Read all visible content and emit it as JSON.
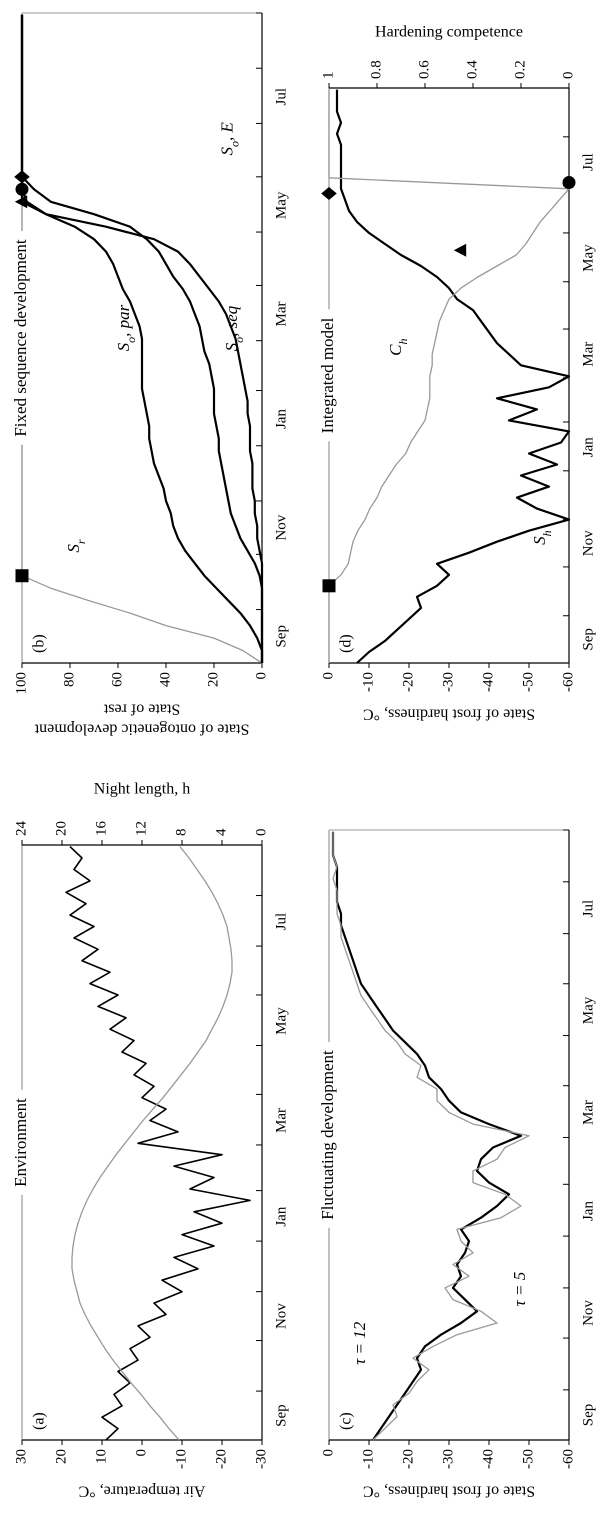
{
  "chart_data": [
    {
      "type": "line",
      "label": "(a)",
      "title": "Environment",
      "x": [
        0,
        7,
        14,
        21,
        28,
        35,
        42,
        49,
        56,
        63,
        70,
        77,
        84,
        91,
        98,
        105,
        112,
        119,
        126,
        133,
        140,
        147,
        154,
        161,
        168,
        175,
        182,
        189,
        196,
        203,
        210,
        217,
        224,
        231,
        238,
        245,
        252,
        259,
        266,
        273,
        280,
        287,
        294,
        301,
        308,
        315,
        322,
        329,
        336,
        343,
        350,
        357,
        364
      ],
      "xlim": [
        0,
        365
      ],
      "xticks": [
        0,
        30,
        61,
        91,
        122,
        153,
        181,
        212,
        242,
        273,
        303,
        334,
        365
      ],
      "xlabels": [
        {
          "value": 15,
          "label": "Sep"
        },
        {
          "value": 76,
          "label": "Nov"
        },
        {
          "value": 137,
          "label": "Jan"
        },
        {
          "value": 196,
          "label": "Mar"
        },
        {
          "value": 257,
          "label": "May"
        },
        {
          "value": 318,
          "label": "Jul"
        }
      ],
      "ylim": [
        -30,
        30
      ],
      "yticks": [
        30,
        20,
        10,
        0,
        -10,
        -20,
        -30
      ],
      "ylabel": [
        "Air temperature, °C"
      ],
      "y2lim": [
        0,
        24
      ],
      "y2ticks": [
        24,
        20,
        16,
        12,
        8,
        4,
        0
      ],
      "y2label": "Night length, h",
      "series": [
        {
          "color": "#000000",
          "width": 1.6,
          "values": [
            9,
            6,
            10,
            5,
            7,
            3,
            6,
            1,
            3,
            -2,
            1,
            -6,
            -3,
            -10,
            -5,
            -14,
            -8,
            -18,
            -10,
            -20,
            -13,
            -27,
            -12,
            -18,
            -8,
            -20,
            1,
            -9,
            -2,
            -6,
            0,
            -3,
            2,
            -1,
            5,
            2,
            8,
            4,
            11,
            6,
            13,
            8,
            15,
            11,
            17,
            12,
            18,
            14,
            19,
            13,
            17,
            15,
            18
          ]
        },
        {
          "color": "#999999",
          "width": 1.3,
          "axis": "y2",
          "values": [
            8.3,
            9.3,
            10.2,
            11.2,
            12.1,
            13.1,
            14.0,
            14.9,
            15.7,
            16.4,
            17.1,
            17.7,
            18.2,
            18.5,
            18.8,
            19.0,
            19.0,
            18.9,
            18.7,
            18.4,
            18.0,
            17.5,
            16.9,
            16.2,
            15.4,
            14.6,
            13.7,
            12.8,
            11.9,
            10.9,
            9.9,
            9.0,
            8.1,
            7.2,
            6.4,
            5.6,
            5.0,
            4.4,
            3.9,
            3.5,
            3.2,
            3.0,
            3.0,
            3.1,
            3.3,
            3.5,
            3.9,
            4.4,
            5.0,
            5.7,
            6.5,
            7.3,
            8.2
          ]
        }
      ],
      "markers": []
    },
    {
      "type": "line",
      "label": "(b)",
      "title": "Fixed sequence development",
      "x": [
        0,
        7,
        14,
        21,
        28,
        35,
        42,
        49,
        56,
        63,
        70,
        77,
        84,
        91,
        98,
        105,
        112,
        119,
        126,
        133,
        140,
        147,
        154,
        161,
        168,
        175,
        182,
        189,
        196,
        203,
        210,
        217,
        224,
        231,
        238,
        245,
        252,
        259,
        266,
        273,
        280,
        287,
        294,
        301,
        308,
        315,
        322,
        329,
        336,
        343,
        350,
        357,
        364
      ],
      "xlim": [
        0,
        365
      ],
      "xticks": [
        0,
        30,
        61,
        91,
        122,
        153,
        181,
        212,
        242,
        273,
        303,
        334,
        365
      ],
      "xlabels": [
        {
          "value": 15,
          "label": "Sep"
        },
        {
          "value": 76,
          "label": "Nov"
        },
        {
          "value": 137,
          "label": "Jan"
        },
        {
          "value": 196,
          "label": "Mar"
        },
        {
          "value": 257,
          "label": "May"
        },
        {
          "value": 318,
          "label": "Jul"
        }
      ],
      "ylim": [
        0,
        100
      ],
      "yticks": [
        100,
        80,
        60,
        40,
        20,
        0
      ],
      "ylabel": [
        "State of ontogenetic development",
        "State of rest"
      ],
      "series": [
        {
          "name": "S",
          "name_sub": "r",
          "color": "#999999",
          "width": 1.3,
          "values": [
            0,
            8,
            20,
            40,
            55,
            72,
            88,
            100,
            100,
            100,
            100,
            100,
            100,
            100,
            100,
            100,
            100,
            100,
            100,
            100,
            100,
            100,
            100,
            100,
            100,
            100,
            100,
            100,
            100,
            100,
            100,
            100,
            100,
            100,
            100,
            100,
            100,
            100,
            100,
            100,
            100,
            100,
            100,
            100,
            100,
            100,
            100,
            100,
            100,
            100,
            100,
            100,
            100
          ]
        },
        {
          "name": "S",
          "name_sub": "o",
          "name_suffix": ", par",
          "color": "#000000",
          "width": 2.2,
          "values": [
            0,
            0,
            2,
            5,
            9,
            14,
            19,
            24,
            28,
            32,
            35,
            37,
            38,
            40,
            41,
            43,
            45,
            46,
            47,
            47,
            48,
            49,
            50,
            50,
            50,
            50,
            50,
            51,
            53,
            55,
            58,
            60,
            62,
            65,
            70,
            78,
            90,
            98,
            100,
            100,
            100,
            100,
            100,
            100,
            100,
            100,
            100,
            100,
            100,
            100,
            100,
            100,
            100
          ]
        },
        {
          "name": "S",
          "name_sub": "o",
          "name_suffix": ", seq",
          "color": "#000000",
          "width": 2.2,
          "values": [
            0,
            0,
            0,
            0,
            0,
            0,
            0,
            1,
            3,
            6,
            9,
            11,
            13,
            14,
            15,
            16,
            17,
            18,
            18,
            19,
            20,
            20,
            20,
            21,
            22,
            24,
            25,
            26,
            28,
            30,
            33,
            37,
            40,
            43,
            48,
            55,
            70,
            88,
            95,
            100,
            100,
            100,
            100,
            100,
            100,
            100,
            100,
            100,
            100,
            100,
            100,
            100,
            100
          ]
        },
        {
          "name": "S",
          "name_sub": "o",
          "name_suffix": ", E",
          "color": "#000000",
          "width": 2.2,
          "values": [
            0,
            0,
            0,
            0,
            0,
            0,
            0,
            0,
            0,
            1,
            2,
            2,
            3,
            3,
            4,
            4,
            4,
            5,
            5,
            5,
            6,
            6,
            7,
            8,
            9,
            10,
            11,
            13,
            15,
            18,
            22,
            26,
            30,
            35,
            45,
            65,
            90,
            100,
            100,
            100,
            100,
            100,
            100,
            100,
            100,
            100,
            100,
            100,
            100,
            100,
            100,
            100,
            100
          ]
        }
      ],
      "markers": [
        {
          "shape": "square",
          "x": 49,
          "y": 100
        },
        {
          "shape": "triangle",
          "x": 259,
          "y": 100
        },
        {
          "shape": "circle",
          "x": 266,
          "y": 100
        },
        {
          "shape": "diamond",
          "x": 273,
          "y": 100
        }
      ]
    },
    {
      "type": "line",
      "label": "(c)",
      "title": "Fluctuating development",
      "x": [
        0,
        7,
        14,
        21,
        28,
        35,
        42,
        49,
        56,
        63,
        70,
        77,
        84,
        91,
        98,
        105,
        112,
        119,
        126,
        133,
        140,
        147,
        154,
        161,
        168,
        175,
        182,
        189,
        196,
        203,
        210,
        217,
        224,
        231,
        238,
        245,
        252,
        259,
        266,
        273,
        280,
        287,
        294,
        301,
        308,
        315,
        322,
        329,
        336,
        343,
        350,
        357,
        364
      ],
      "xlim": [
        0,
        365
      ],
      "xticks": [
        0,
        30,
        61,
        91,
        122,
        153,
        181,
        212,
        242,
        273,
        303,
        334,
        365
      ],
      "xlabels": [
        {
          "value": 15,
          "label": "Sep"
        },
        {
          "value": 76,
          "label": "Nov"
        },
        {
          "value": 137,
          "label": "Jan"
        },
        {
          "value": 196,
          "label": "Mar"
        },
        {
          "value": 257,
          "label": "May"
        },
        {
          "value": 318,
          "label": "Jul"
        }
      ],
      "ylim": [
        -60,
        0
      ],
      "yticks": [
        0,
        -10,
        -20,
        -30,
        -40,
        -50,
        -60
      ],
      "ylabel": [
        "State of frost hardiness, °C"
      ],
      "series": [
        {
          "name": "τ = 12",
          "color": "#000000",
          "width": 2.2,
          "values": [
            -11,
            -13,
            -15,
            -17,
            -19,
            -21,
            -23,
            -22,
            -24,
            -28,
            -33,
            -37,
            -34,
            -31,
            -33,
            -32,
            -34,
            -35,
            -33,
            -38,
            -42,
            -45,
            -40,
            -37,
            -38,
            -41,
            -48,
            -40,
            -33,
            -30,
            -28,
            -25,
            -24,
            -22,
            -19,
            -16,
            -14,
            -12,
            -10,
            -8,
            -7,
            -6,
            -5,
            -4,
            -3,
            -3,
            -2,
            -2,
            -2,
            -2,
            -1,
            -1,
            -1
          ]
        },
        {
          "name": "τ = 5",
          "color": "#999999",
          "width": 1.3,
          "values": [
            -11,
            -14,
            -17,
            -16,
            -20,
            -22,
            -25,
            -21,
            -26,
            -32,
            -42,
            -38,
            -31,
            -29,
            -35,
            -31,
            -36,
            -33,
            -32,
            -43,
            -48,
            -44,
            -36,
            -36,
            -42,
            -44,
            -50,
            -36,
            -30,
            -27,
            -27,
            -22,
            -23,
            -19,
            -17,
            -14,
            -12,
            -10,
            -8,
            -7,
            -6,
            -5,
            -4,
            -3,
            -3,
            -2,
            -2,
            -2,
            -1,
            -2,
            -1,
            -1,
            -1
          ]
        }
      ],
      "markers": []
    },
    {
      "type": "line",
      "label": "(d)",
      "title": "Integrated model",
      "x": [
        0,
        7,
        14,
        21,
        28,
        35,
        42,
        49,
        56,
        63,
        70,
        77,
        84,
        91,
        98,
        105,
        112,
        119,
        126,
        133,
        140,
        147,
        154,
        161,
        168,
        175,
        182,
        189,
        196,
        203,
        210,
        217,
        224,
        231,
        238,
        245,
        252,
        259,
        266,
        273,
        280,
        287,
        294,
        301,
        308,
        315,
        322,
        329,
        336,
        343,
        350,
        357,
        364
      ],
      "xlim": [
        0,
        365
      ],
      "xticks": [
        0,
        30,
        61,
        91,
        122,
        153,
        181,
        212,
        242,
        273,
        303,
        334,
        365
      ],
      "xlabels": [
        {
          "value": 15,
          "label": "Sep"
        },
        {
          "value": 76,
          "label": "Nov"
        },
        {
          "value": 137,
          "label": "Jan"
        },
        {
          "value": 196,
          "label": "Mar"
        },
        {
          "value": 257,
          "label": "May"
        },
        {
          "value": 318,
          "label": "Jul"
        }
      ],
      "ylim": [
        -60,
        0
      ],
      "yticks": [
        0,
        -10,
        -20,
        -30,
        -40,
        -50,
        -60
      ],
      "ylabel": [
        "State of frost hardiness, °C"
      ],
      "y2lim": [
        0,
        1
      ],
      "y2ticks": [
        1,
        0.8,
        0.6,
        0.4,
        0.2,
        0
      ],
      "y2label": "Hardening competence",
      "series": [
        {
          "name": "S",
          "name_sub": "h",
          "color": "#000000",
          "width": 2.2,
          "values": [
            -7,
            -10,
            -14,
            -17,
            -20,
            -23,
            -22,
            -27,
            -30,
            -27,
            -35,
            -42,
            -50,
            -60,
            -52,
            -47,
            -55,
            -48,
            -57,
            -50,
            -58,
            -60,
            -45,
            -52,
            -42,
            -55,
            -60,
            -48,
            -45,
            -42,
            -40,
            -38,
            -36,
            -32,
            -30,
            -27,
            -23,
            -18,
            -14,
            -10,
            -7,
            -5,
            -4,
            -3,
            -3,
            -3,
            -3,
            -3,
            -2,
            -3,
            -2,
            -2,
            -2
          ]
        },
        {
          "name": "C",
          "name_sub": "h",
          "color": "#999999",
          "width": 1.3,
          "axis": "y2",
          "values": [
            1,
            1,
            1,
            1,
            1,
            1,
            1,
            1,
            0.95,
            0.92,
            0.91,
            0.9,
            0.88,
            0.85,
            0.83,
            0.8,
            0.78,
            0.75,
            0.72,
            0.68,
            0.66,
            0.63,
            0.6,
            0.59,
            0.58,
            0.58,
            0.58,
            0.57,
            0.57,
            0.56,
            0.55,
            0.54,
            0.52,
            0.5,
            0.45,
            0.38,
            0.3,
            0.22,
            0.18,
            0.15,
            0.12,
            0.08,
            0.04,
            0,
            1,
            1,
            1,
            1,
            1,
            1,
            1,
            1,
            1
          ]
        }
      ],
      "markers": [
        {
          "shape": "square",
          "x": 49,
          "y": 0
        },
        {
          "shape": "triangle",
          "x": 262,
          "y": -33
        },
        {
          "shape": "diamond",
          "x": 298,
          "y": 0
        },
        {
          "shape": "circle",
          "x": 305,
          "y": -60
        }
      ]
    }
  ]
}
